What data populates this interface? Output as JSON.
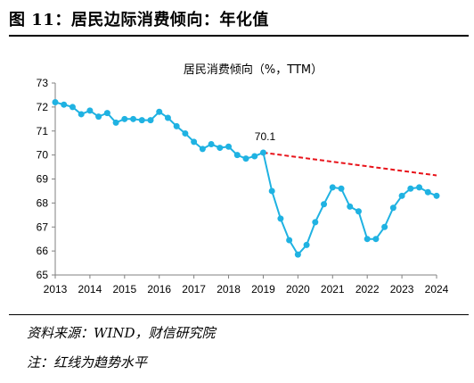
{
  "figure": {
    "title": "图 11：居民边际消费倾向：年化值",
    "source": "资料来源：WIND，财信研究院",
    "note": "注：红线为趋势水平"
  },
  "chart_data": {
    "type": "line",
    "title": "居民消费倾向（%，TTM）",
    "xlabel": "",
    "ylabel": "",
    "ylim": [
      65,
      73
    ],
    "yticks": [
      "65",
      "66",
      "67",
      "68",
      "69",
      "70",
      "71",
      "72",
      "73"
    ],
    "xticks": [
      "2013",
      "2014",
      "2015",
      "2016",
      "2017",
      "2018",
      "2019",
      "2020",
      "2021",
      "2022",
      "2023",
      "2024"
    ],
    "grid": false,
    "series": [
      {
        "color": "#1fb2e2",
        "marker": "circle",
        "x": [
          "2013Q1",
          "2013Q2",
          "2013Q3",
          "2013Q4",
          "2014Q1",
          "2014Q2",
          "2014Q3",
          "2014Q4",
          "2015Q1",
          "2015Q2",
          "2015Q3",
          "2015Q4",
          "2016Q1",
          "2016Q2",
          "2016Q3",
          "2016Q4",
          "2017Q1",
          "2017Q2",
          "2017Q3",
          "2017Q4",
          "2018Q1",
          "2018Q2",
          "2018Q3",
          "2018Q4",
          "2019Q1",
          "2019Q2",
          "2019Q3",
          "2019Q4",
          "2020Q1",
          "2020Q2",
          "2020Q3",
          "2020Q4",
          "2021Q1",
          "2021Q2",
          "2021Q3",
          "2021Q4",
          "2022Q1",
          "2022Q2",
          "2022Q3",
          "2022Q4",
          "2023Q1",
          "2023Q2",
          "2023Q3",
          "2023Q4",
          "2024Q1"
        ],
        "values": [
          72.2,
          72.1,
          72.0,
          71.7,
          71.85,
          71.6,
          71.75,
          71.35,
          71.5,
          71.5,
          71.45,
          71.45,
          71.8,
          71.55,
          71.2,
          70.9,
          70.55,
          70.25,
          70.45,
          70.3,
          70.35,
          70.0,
          69.85,
          69.95,
          70.1,
          68.5,
          67.35,
          66.45,
          65.85,
          66.25,
          67.2,
          67.95,
          68.65,
          68.6,
          67.85,
          67.65,
          66.5,
          66.5,
          67.0,
          67.8,
          68.3,
          68.6,
          68.65,
          68.45,
          68.3
        ]
      }
    ],
    "trend": {
      "color": "#e8141b",
      "style": "dashed",
      "x": [
        "2019Q1",
        "2024Q1"
      ],
      "values": [
        70.1,
        69.15
      ]
    },
    "annotations": [
      {
        "text": "70.1",
        "x": "2019Q1",
        "y": 70.1
      }
    ]
  }
}
